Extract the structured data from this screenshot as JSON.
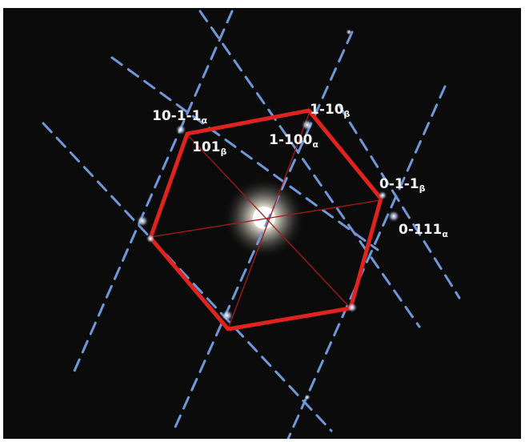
{
  "image": {
    "kind": "electron-diffraction-pattern",
    "colors": {
      "background": "#0b0b0b",
      "hexagon": "#e0231f",
      "dashed_lines": "#6f98d8",
      "inner_lines": "#a81a1a",
      "spots": "#ffffff",
      "label": "#f4f4f4"
    },
    "labels": {
      "l1": {
        "main": "10-1-1",
        "sub": "α"
      },
      "l2": {
        "main": "101",
        "sub": "β"
      },
      "l3": {
        "main": "1-10",
        "sub": "β"
      },
      "l4": {
        "main": "1-100",
        "sub": "α"
      },
      "l5": {
        "main": "0-1-1",
        "sub": "β"
      },
      "l6": {
        "main": "0-111",
        "sub": "α"
      }
    }
  }
}
